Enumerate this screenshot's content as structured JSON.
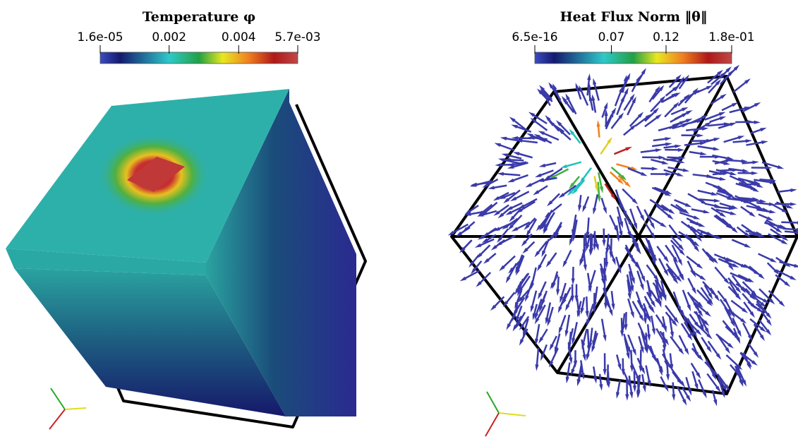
{
  "panels": [
    {
      "title": "Temperature φ",
      "colorbar": {
        "range": [
          1.6e-05,
          0.0057
        ],
        "ticks": [
          {
            "value": 1.6e-05,
            "label": "1.6e-05"
          },
          0.002,
          0.004,
          {
            "value": 0.0057,
            "label": "5.7e-03"
          }
        ]
      }
    },
    {
      "title": "Heat Flux Norm ‖θ‖",
      "colorbar": {
        "range": [
          6.5e-16,
          0.18
        ],
        "ticks": [
          {
            "value": 6.5e-16,
            "label": "6.5e-16"
          },
          0.07,
          0.12,
          {
            "value": 0.18,
            "label": "1.8e-01"
          }
        ]
      }
    }
  ]
}
